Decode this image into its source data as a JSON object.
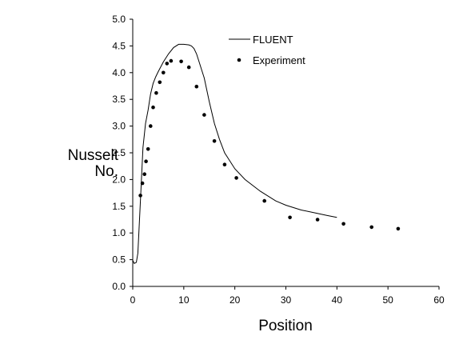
{
  "chart_data": {
    "type": "line",
    "title": "",
    "xlabel": "Position",
    "ylabel_lines": [
      "Nusselt",
      "No."
    ],
    "xlim": [
      0,
      60
    ],
    "ylim": [
      0,
      5
    ],
    "xticks": [
      "0",
      "10",
      "20",
      "30",
      "40",
      "50",
      "60"
    ],
    "yticks": [
      "0.0",
      "0.5",
      "1.0",
      "1.5",
      "2.0",
      "2.5",
      "3.0",
      "3.5",
      "4.0",
      "4.5",
      "5.0"
    ],
    "grid": false,
    "legend_position": "top-center",
    "series": [
      {
        "name": "FLUENT",
        "style": "line",
        "color": "#000000",
        "x": [
          0.0,
          0.3,
          0.7,
          1.0,
          1.5,
          2.0,
          2.5,
          3.0,
          3.5,
          4.0,
          4.5,
          5.0,
          6.0,
          7.0,
          8.0,
          9.0,
          10.0,
          11.0,
          11.5,
          12.0,
          12.5,
          13.0,
          14.0,
          15.0,
          16.0,
          17.0,
          18.0,
          20.0,
          22.0,
          25.0,
          28.0,
          30.0,
          33.0,
          36.0,
          38.0,
          40.0
        ],
        "values": [
          0.49,
          0.43,
          0.45,
          0.62,
          1.6,
          2.6,
          3.05,
          3.3,
          3.6,
          3.8,
          3.92,
          4.02,
          4.2,
          4.35,
          4.47,
          4.53,
          4.53,
          4.52,
          4.5,
          4.45,
          4.35,
          4.2,
          3.9,
          3.45,
          3.05,
          2.75,
          2.5,
          2.2,
          2.0,
          1.78,
          1.6,
          1.52,
          1.43,
          1.37,
          1.33,
          1.29
        ]
      },
      {
        "name": "Experiment",
        "style": "markers",
        "color": "#000000",
        "x": [
          1.5,
          1.9,
          2.3,
          2.6,
          3.0,
          3.5,
          4.0,
          4.6,
          5.3,
          6.0,
          6.7,
          7.5,
          9.5,
          11.0,
          12.5,
          14.0,
          16.0,
          18.0,
          20.3,
          25.8,
          30.8,
          36.2,
          41.3,
          46.8,
          52.0
        ],
        "values": [
          1.7,
          1.93,
          2.1,
          2.34,
          2.57,
          3.0,
          3.35,
          3.62,
          3.82,
          4.0,
          4.17,
          4.22,
          4.21,
          4.1,
          3.74,
          3.21,
          2.72,
          2.28,
          2.03,
          1.6,
          1.29,
          1.25,
          1.17,
          1.11,
          1.08
        ]
      }
    ]
  }
}
